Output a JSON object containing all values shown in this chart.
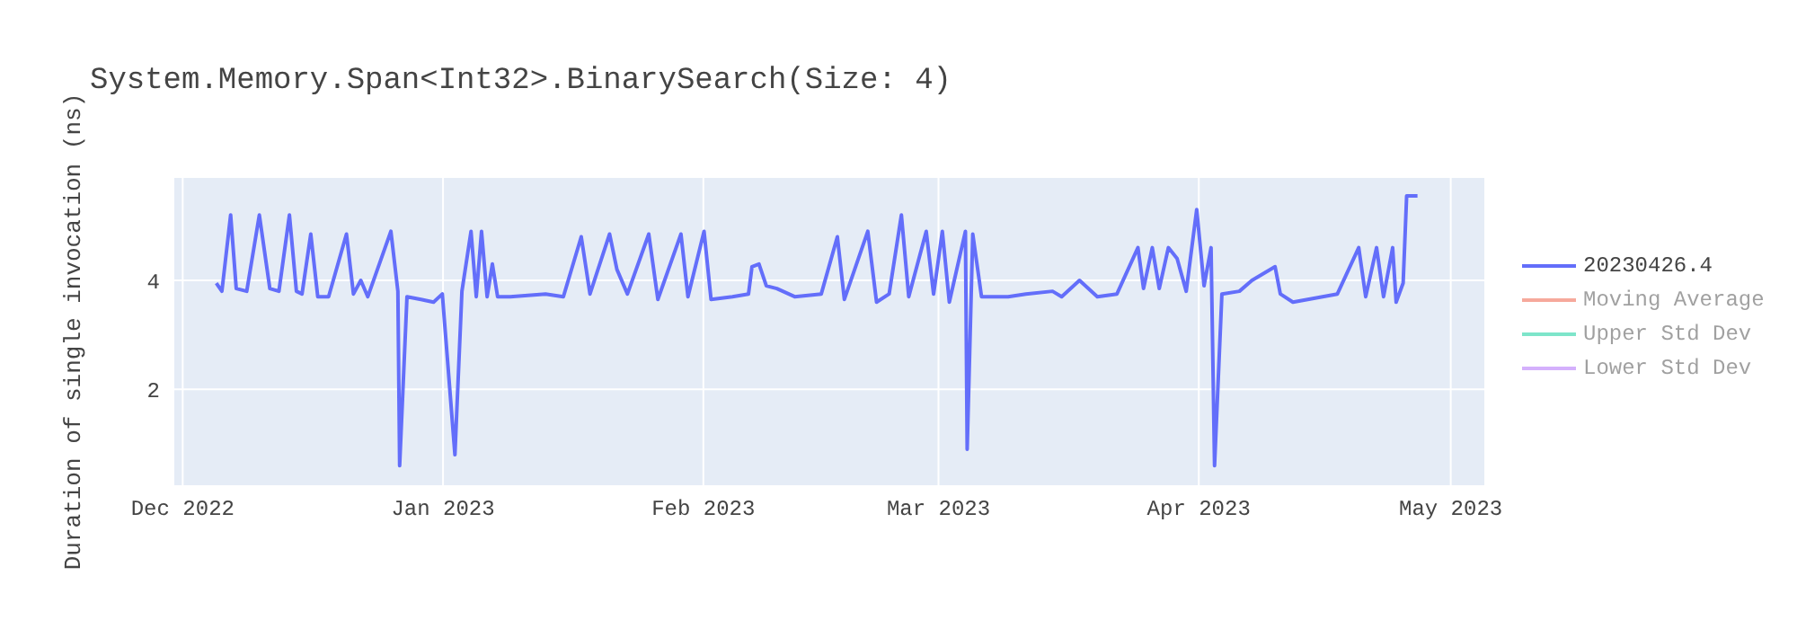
{
  "chart_data": {
    "type": "line",
    "title": "System.Memory.Span<Int32>.BinarySearch(Size: 4)",
    "ylabel": "Duration of single invocation (ns)",
    "xlim": [
      "2022-11-30",
      "2023-05-05"
    ],
    "xticks": [
      {
        "value": "2022-12-01",
        "label": "Dec 2022"
      },
      {
        "value": "2023-01-01",
        "label": "Jan 2023"
      },
      {
        "value": "2023-02-01",
        "label": "Feb 2023"
      },
      {
        "value": "2023-03-01",
        "label": "Mar 2023"
      },
      {
        "value": "2023-04-01",
        "label": "Apr 2023"
      },
      {
        "value": "2023-05-01",
        "label": "May 2023"
      }
    ],
    "ylim": [
      0.24,
      5.88
    ],
    "yticks": [
      2,
      4
    ],
    "grid": true,
    "legend": "top right",
    "marker": "none",
    "line_style": "solid",
    "x": [
      "2022-12-05T00:00",
      "2022-12-05T16:00",
      "2022-12-06T17:00",
      "2022-12-07T09:00",
      "2022-12-08T15:00",
      "2022-12-10T03:00",
      "2022-12-11T09:00",
      "2022-12-12T11:00",
      "2022-12-13T17:00",
      "2022-12-14T13:00",
      "2022-12-15T05:00",
      "2022-12-16T06:00",
      "2022-12-17T02:00",
      "2022-12-18T09:00",
      "2022-12-20T12:00",
      "2022-12-21T08:00",
      "2022-12-22T05:00",
      "2022-12-23T01:00",
      "2022-12-25T19:00",
      "2022-12-26T15:00",
      "2022-12-26T20:00",
      "2022-12-27T17:00",
      "2022-12-29T09:00",
      "2022-12-30T21:00",
      "2022-12-31T22:00",
      "2023-01-02T10:00",
      "2023-01-03T06:00",
      "2023-01-04T08:00",
      "2023-01-04T23:00",
      "2023-01-05T14:00",
      "2023-01-06T06:00",
      "2023-01-06T21:00",
      "2023-01-07T12:00",
      "2023-01-09T00:00",
      "2023-01-13T05:00",
      "2023-01-15T08:00",
      "2023-01-17T11:00",
      "2023-01-18T12:00",
      "2023-01-20T20:00",
      "2023-01-21T17:00",
      "2023-01-22T23:00",
      "2023-01-25T12:00",
      "2023-01-26T14:00",
      "2023-01-29T08:00",
      "2023-01-30T04:00",
      "2023-02-01T02:00",
      "2023-02-01T22:00",
      "2023-02-04T11:00",
      "2023-02-06T09:00",
      "2023-02-06T19:00",
      "2023-02-07T15:00",
      "2023-02-08T12:00",
      "2023-02-09T18:00",
      "2023-02-11T21:00",
      "2023-02-15T01:00",
      "2023-02-16T23:00",
      "2023-02-17T19:00",
      "2023-02-20T14:00",
      "2023-02-21T15:00",
      "2023-02-23T03:00",
      "2023-02-24T14:00",
      "2023-02-25T11:00",
      "2023-02-27T13:00",
      "2023-02-28T10:00",
      "2023-03-01T11:00",
      "2023-03-02T07:00",
      "2023-03-04T05:00",
      "2023-03-04T10:00",
      "2023-03-05T02:00",
      "2023-03-06T03:00",
      "2023-03-09T07:00",
      "2023-03-11T10:00",
      "2023-03-14T14:00",
      "2023-03-15T16:00",
      "2023-03-17T19:00",
      "2023-03-19T22:00",
      "2023-03-22T06:00",
      "2023-03-24T18:00",
      "2023-03-25T10:00",
      "2023-03-26T11:00",
      "2023-03-27T07:00",
      "2023-03-28T09:00",
      "2023-03-29T10:00",
      "2023-03-30T12:00",
      "2023-03-31T18:00",
      "2023-04-01T15:00",
      "2023-04-02T11:00",
      "2023-04-02T21:00",
      "2023-04-03T18:00",
      "2023-04-05T20:00",
      "2023-04-07T08:00",
      "2023-04-10T02:00",
      "2023-04-10T17:00",
      "2023-04-12T05:00",
      "2023-04-17T12:00",
      "2023-04-20T01:00",
      "2023-04-20T21:00",
      "2023-04-22T04:00",
      "2023-04-23T00:00",
      "2023-04-24T02:00",
      "2023-04-24T12:00",
      "2023-04-25T08:00",
      "2023-04-25T18:00",
      "2023-04-27T01:00"
    ],
    "series": [
      {
        "name": "20230426.4",
        "color": "#636efa",
        "values": [
          3.95,
          3.8,
          5.2,
          3.85,
          3.8,
          5.2,
          3.85,
          3.8,
          5.2,
          3.8,
          3.75,
          4.85,
          3.7,
          3.7,
          4.85,
          3.75,
          4.0,
          3.7,
          4.9,
          3.8,
          0.6,
          3.7,
          3.65,
          3.6,
          3.75,
          0.8,
          3.8,
          4.9,
          3.7,
          4.9,
          3.7,
          4.3,
          3.7,
          3.7,
          3.75,
          3.7,
          4.8,
          3.75,
          4.85,
          4.2,
          3.75,
          4.85,
          3.65,
          4.85,
          3.7,
          4.9,
          3.65,
          3.7,
          3.75,
          4.25,
          4.3,
          3.9,
          3.85,
          3.7,
          3.75,
          4.8,
          3.65,
          4.9,
          3.6,
          3.75,
          5.2,
          3.7,
          4.9,
          3.75,
          4.9,
          3.6,
          4.9,
          0.9,
          4.85,
          3.7,
          3.7,
          3.75,
          3.8,
          3.7,
          4.0,
          3.7,
          3.75,
          4.6,
          3.85,
          4.6,
          3.85,
          4.6,
          4.4,
          3.8,
          5.3,
          3.9,
          4.6,
          0.6,
          3.75,
          3.8,
          4.0,
          4.25,
          3.75,
          3.6,
          3.75,
          4.6,
          3.7,
          4.6,
          3.7,
          4.6,
          3.6,
          3.95,
          5.55,
          5.55
        ]
      },
      {
        "name": "Moving Average",
        "color": "#ef553b",
        "values": [
          null,
          null,
          null,
          null,
          null,
          null,
          null,
          null,
          null,
          null,
          null,
          null,
          null,
          null,
          null,
          null,
          null,
          null,
          null,
          null,
          null,
          null,
          null,
          null,
          null,
          null,
          null,
          null,
          null,
          null,
          null,
          null,
          null,
          null,
          null,
          null,
          null,
          null,
          null,
          null,
          null,
          null,
          null,
          null,
          null,
          null,
          null,
          null,
          null,
          null,
          null,
          null,
          null,
          null,
          null,
          null,
          null,
          null,
          null,
          null,
          null,
          null,
          null,
          null,
          null,
          null,
          null,
          null,
          null,
          null,
          null,
          null,
          null,
          null,
          null,
          null,
          null,
          null,
          null,
          null,
          null,
          null,
          null,
          null,
          null,
          null,
          null,
          null,
          null,
          null,
          null,
          null,
          null,
          null,
          null,
          null,
          null,
          null,
          null,
          null,
          null,
          null,
          null,
          null
        ]
      },
      {
        "name": "Upper Std Dev",
        "color": "#00cc96",
        "values": [
          null,
          null,
          null,
          null,
          null,
          null,
          null,
          null,
          null,
          null,
          null,
          null,
          null,
          null,
          null,
          null,
          null,
          null,
          null,
          null,
          null,
          null,
          null,
          null,
          null,
          null,
          null,
          null,
          null,
          null,
          null,
          null,
          null,
          null,
          null,
          null,
          null,
          null,
          null,
          null,
          null,
          null,
          null,
          null,
          null,
          null,
          null,
          null,
          null,
          null,
          null,
          null,
          null,
          null,
          null,
          null,
          null,
          null,
          null,
          null,
          null,
          null,
          null,
          null,
          null,
          null,
          null,
          null,
          null,
          null,
          null,
          null,
          null,
          null,
          null,
          null,
          null,
          null,
          null,
          null,
          null,
          null,
          null,
          null,
          null,
          null,
          null,
          null,
          null,
          null,
          null,
          null,
          null,
          null,
          null,
          null,
          null,
          null,
          null,
          null,
          null,
          null,
          null,
          null
        ]
      },
      {
        "name": "Lower Std Dev",
        "color": "#ab63fa",
        "values": [
          null,
          null,
          null,
          null,
          null,
          null,
          null,
          null,
          null,
          null,
          null,
          null,
          null,
          null,
          null,
          null,
          null,
          null,
          null,
          null,
          null,
          null,
          null,
          null,
          null,
          null,
          null,
          null,
          null,
          null,
          null,
          null,
          null,
          null,
          null,
          null,
          null,
          null,
          null,
          null,
          null,
          null,
          null,
          null,
          null,
          null,
          null,
          null,
          null,
          null,
          null,
          null,
          null,
          null,
          null,
          null,
          null,
          null,
          null,
          null,
          null,
          null,
          null,
          null,
          null,
          null,
          null,
          null,
          null,
          null,
          null,
          null,
          null,
          null,
          null,
          null,
          null,
          null,
          null,
          null,
          null,
          null,
          null,
          null,
          null,
          null,
          null,
          null,
          null,
          null,
          null,
          null,
          null,
          null,
          null,
          null,
          null,
          null,
          null,
          null,
          null,
          null,
          null,
          null
        ]
      }
    ]
  }
}
